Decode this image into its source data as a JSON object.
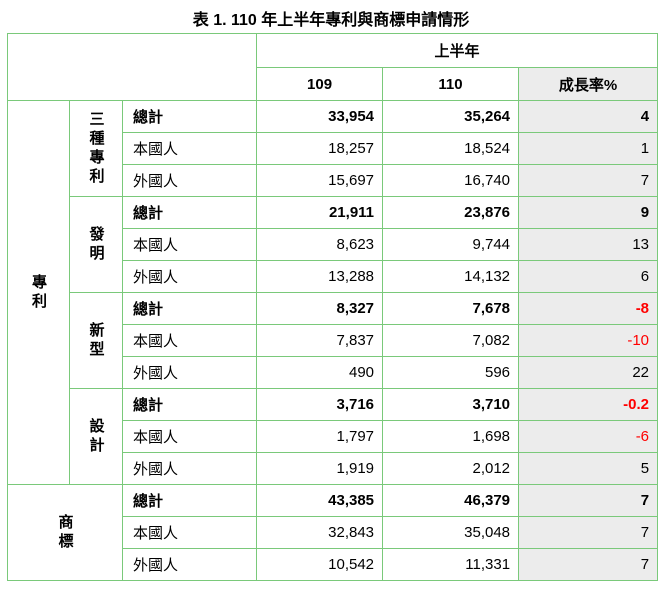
{
  "title": "表 1. 110 年上半年專利與商標申請情形",
  "header": {
    "period": "上半年",
    "col_109": "109",
    "col_110": "110",
    "col_growth": "成長率%"
  },
  "groups": {
    "patent": "專利",
    "trademark": "商標"
  },
  "sub": {
    "three": "三種專利",
    "invention": "發明",
    "utility": "新型",
    "design": "設計"
  },
  "rows": [
    {
      "label": "總計",
      "v109": "33,954",
      "v110": "35,264",
      "growth": "4"
    },
    {
      "label": "本國人",
      "v109": "18,257",
      "v110": "18,524",
      "growth": "1"
    },
    {
      "label": "外國人",
      "v109": "15,697",
      "v110": "16,740",
      "growth": "7"
    },
    {
      "label": "總計",
      "v109": "21,911",
      "v110": "23,876",
      "growth": "9"
    },
    {
      "label": "本國人",
      "v109": "8,623",
      "v110": "9,744",
      "growth": "13"
    },
    {
      "label": "外國人",
      "v109": "13,288",
      "v110": "14,132",
      "growth": "6"
    },
    {
      "label": "總計",
      "v109": "8,327",
      "v110": "7,678",
      "growth": "-8"
    },
    {
      "label": "本國人",
      "v109": "7,837",
      "v110": "7,082",
      "growth": "-10"
    },
    {
      "label": "外國人",
      "v109": "490",
      "v110": "596",
      "growth": "22"
    },
    {
      "label": "總計",
      "v109": "3,716",
      "v110": "3,710",
      "growth": "-0.2"
    },
    {
      "label": "本國人",
      "v109": "1,797",
      "v110": "1,698",
      "growth": "-6"
    },
    {
      "label": "外國人",
      "v109": "1,919",
      "v110": "2,012",
      "growth": "5"
    },
    {
      "label": "總計",
      "v109": "43,385",
      "v110": "46,379",
      "growth": "7"
    },
    {
      "label": "本國人",
      "v109": "32,843",
      "v110": "35,048",
      "growth": "7"
    },
    {
      "label": "外國人",
      "v109": "10,542",
      "v110": "11,331",
      "growth": "7"
    }
  ],
  "colors": {
    "border": "#7ac97a",
    "growth_bg": "#ececec",
    "negative": "#ff0000"
  }
}
